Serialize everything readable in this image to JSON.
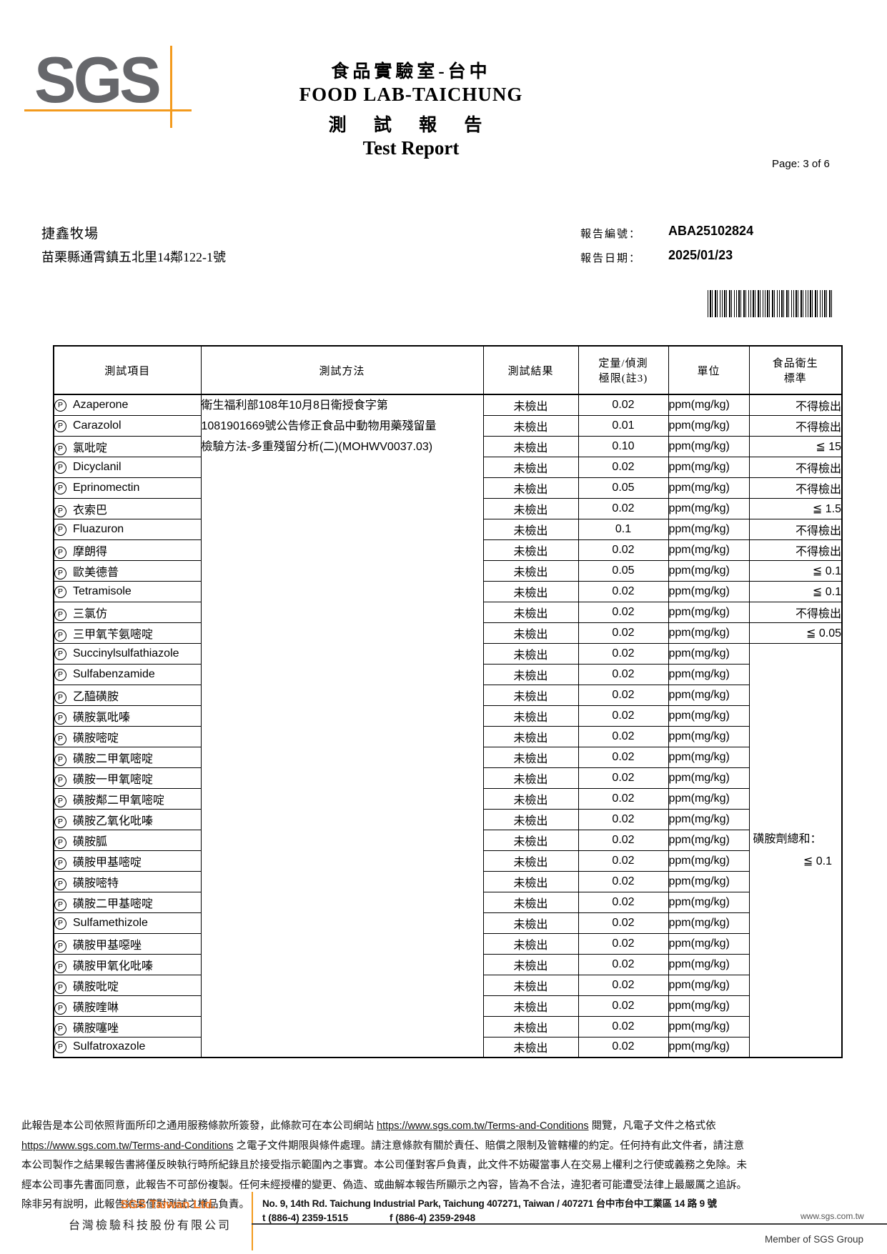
{
  "header": {
    "logo_text": "SGS",
    "lab_title_zh": "食品實驗室-台中",
    "lab_title_en": "FOOD LAB-TAICHUNG",
    "report_title_zh": "測 試 報 告",
    "report_title_en": "Test Report",
    "page_label": "Page: 3 of 6"
  },
  "client": {
    "name": "捷鑫牧場",
    "address": "苗栗縣通霄鎮五北里14鄰122-1號"
  },
  "report_info": {
    "no_label": "報告編號：",
    "no_value": "ABA25102824",
    "date_label": "報告日期：",
    "date_value": "2025/01/23"
  },
  "table": {
    "marker": "P",
    "columns": [
      {
        "label": "測試項目",
        "label2": ""
      },
      {
        "label": "測試方法",
        "label2": ""
      },
      {
        "label": "測試結果",
        "label2": ""
      },
      {
        "label": "定量/偵測",
        "label2": "極限(註3)"
      },
      {
        "label": "單位",
        "label2": ""
      },
      {
        "label": "食品衛生",
        "label2": "標準"
      }
    ],
    "method_lines": [
      "衛生福利部108年10月8日衛授食字第",
      "1081901669號公告修正食品中動物用藥殘留量",
      "檢驗方法-多重殘留分析(二)(MOHWV0037.03)"
    ],
    "sulfa_note_line1": "磺胺劑總和：",
    "sulfa_note_line2": "≦ 0.1",
    "rows": [
      {
        "item": "Azaperone",
        "result": "未檢出",
        "limit": "0.02",
        "unit": "ppm(mg/kg)",
        "standard": "不得檢出"
      },
      {
        "item": "Carazolol",
        "result": "未檢出",
        "limit": "0.01",
        "unit": "ppm(mg/kg)",
        "standard": "不得檢出"
      },
      {
        "item": "氯吡啶",
        "result": "未檢出",
        "limit": "0.10",
        "unit": "ppm(mg/kg)",
        "standard": "≦ 15"
      },
      {
        "item": "Dicyclanil",
        "result": "未檢出",
        "limit": "0.02",
        "unit": "ppm(mg/kg)",
        "standard": "不得檢出"
      },
      {
        "item": "Eprinomectin",
        "result": "未檢出",
        "limit": "0.05",
        "unit": "ppm(mg/kg)",
        "standard": "不得檢出"
      },
      {
        "item": "衣索巴",
        "result": "未檢出",
        "limit": "0.02",
        "unit": "ppm(mg/kg)",
        "standard": "≦ 1.5"
      },
      {
        "item": "Fluazuron",
        "result": "未檢出",
        "limit": "0.1",
        "unit": "ppm(mg/kg)",
        "standard": "不得檢出"
      },
      {
        "item": "摩朗得",
        "result": "未檢出",
        "limit": "0.02",
        "unit": "ppm(mg/kg)",
        "standard": "不得檢出"
      },
      {
        "item": "歐美德普",
        "result": "未檢出",
        "limit": "0.05",
        "unit": "ppm(mg/kg)",
        "standard": "≦ 0.1"
      },
      {
        "item": "Tetramisole",
        "result": "未檢出",
        "limit": "0.02",
        "unit": "ppm(mg/kg)",
        "standard": "≦ 0.1"
      },
      {
        "item": "三氯仿",
        "result": "未檢出",
        "limit": "0.02",
        "unit": "ppm(mg/kg)",
        "standard": "不得檢出"
      },
      {
        "item": "三甲氧苄氨嘧啶",
        "result": "未檢出",
        "limit": "0.02",
        "unit": "ppm(mg/kg)",
        "standard": "≦ 0.05"
      },
      {
        "item": "Succinylsulfathiazole",
        "result": "未檢出",
        "limit": "0.02",
        "unit": "ppm(mg/kg)",
        "standard": null
      },
      {
        "item": "Sulfabenzamide",
        "result": "未檢出",
        "limit": "0.02",
        "unit": "ppm(mg/kg)",
        "standard": null
      },
      {
        "item": "乙醯磺胺",
        "result": "未檢出",
        "limit": "0.02",
        "unit": "ppm(mg/kg)",
        "standard": null
      },
      {
        "item": "磺胺氯吡嗪",
        "result": "未檢出",
        "limit": "0.02",
        "unit": "ppm(mg/kg)",
        "standard": null
      },
      {
        "item": "磺胺嘧啶",
        "result": "未檢出",
        "limit": "0.02",
        "unit": "ppm(mg/kg)",
        "standard": null
      },
      {
        "item": "磺胺二甲氧嘧啶",
        "result": "未檢出",
        "limit": "0.02",
        "unit": "ppm(mg/kg)",
        "standard": null
      },
      {
        "item": "磺胺一甲氧嘧啶",
        "result": "未檢出",
        "limit": "0.02",
        "unit": "ppm(mg/kg)",
        "standard": null
      },
      {
        "item": "磺胺鄰二甲氧嘧啶",
        "result": "未檢出",
        "limit": "0.02",
        "unit": "ppm(mg/kg)",
        "standard": null
      },
      {
        "item": "磺胺乙氧化吡嗪",
        "result": "未檢出",
        "limit": "0.02",
        "unit": "ppm(mg/kg)",
        "standard": null
      },
      {
        "item": "磺胺胍",
        "result": "未檢出",
        "limit": "0.02",
        "unit": "ppm(mg/kg)",
        "standard": null
      },
      {
        "item": "磺胺甲基嘧啶",
        "result": "未檢出",
        "limit": "0.02",
        "unit": "ppm(mg/kg)",
        "standard": null
      },
      {
        "item": "磺胺嘧特",
        "result": "未檢出",
        "limit": "0.02",
        "unit": "ppm(mg/kg)",
        "standard": null
      },
      {
        "item": "磺胺二甲基嘧啶",
        "result": "未檢出",
        "limit": "0.02",
        "unit": "ppm(mg/kg)",
        "standard": null
      },
      {
        "item": "Sulfamethizole",
        "result": "未檢出",
        "limit": "0.02",
        "unit": "ppm(mg/kg)",
        "standard": null
      },
      {
        "item": "磺胺甲基噁唑",
        "result": "未檢出",
        "limit": "0.02",
        "unit": "ppm(mg/kg)",
        "standard": null
      },
      {
        "item": "磺胺甲氧化吡嗪",
        "result": "未檢出",
        "limit": "0.02",
        "unit": "ppm(mg/kg)",
        "standard": null
      },
      {
        "item": "磺胺吡啶",
        "result": "未檢出",
        "limit": "0.02",
        "unit": "ppm(mg/kg)",
        "standard": null
      },
      {
        "item": "磺胺喹啉",
        "result": "未檢出",
        "limit": "0.02",
        "unit": "ppm(mg/kg)",
        "standard": null
      },
      {
        "item": "磺胺噻唑",
        "result": "未檢出",
        "limit": "0.02",
        "unit": "ppm(mg/kg)",
        "standard": null
      },
      {
        "item": "Sulfatroxazole",
        "result": "未檢出",
        "limit": "0.02",
        "unit": "ppm(mg/kg)",
        "standard": null
      }
    ]
  },
  "disclaimer": {
    "l1a": "此報告是本公司依照背面所印之通用服務條款所簽發，此條款可在本公司網站 ",
    "url1": "https://www.sgs.com.tw/Terms-and-Conditions",
    "l1b": " 閱覽，凡電子文件之格式依",
    "url2": "https://www.sgs.com.tw/Terms-and-Conditions",
    "l2b": " 之電子文件期限與條件處理。請注意條款有關於責任、賠償之限制及管轄權的約定。任何持有此文件者，請注意",
    "l3": "本公司製作之結果報告書將僅反映執行時所紀錄且於接受指示範圍內之事實。本公司僅對客戶負責，此文件不妨礙當事人在交易上權利之行使或義務之免除。未",
    "l4": "經本公司事先書面同意，此報告不可部份複製。任何未經授權的變更、偽造、或曲解本報告所顯示之內容，皆為不合法，違犯者可能遭受法律上最嚴厲之追訴。",
    "l5": "除非另有說明，此報告結果僅對測試之樣品負責。"
  },
  "footer": {
    "company_en": "SGS Taiwan Ltd.",
    "company_zh": "台灣檢驗科技股份有限公司",
    "address": "No. 9, 14th Rd. Taichung Industrial Park, Taichung 407271, Taiwan / 407271 台中市台中工業區 14 路 9 號",
    "tel": "t (886-4) 2359-1515",
    "fax": "f (886-4) 2359-2948",
    "website": "www.sgs.com.tw",
    "member": "Member of SGS Group"
  },
  "colors": {
    "accent_orange": "#f39a1d",
    "logo_gray": "#66676b",
    "company_orange": "#ee7623"
  }
}
